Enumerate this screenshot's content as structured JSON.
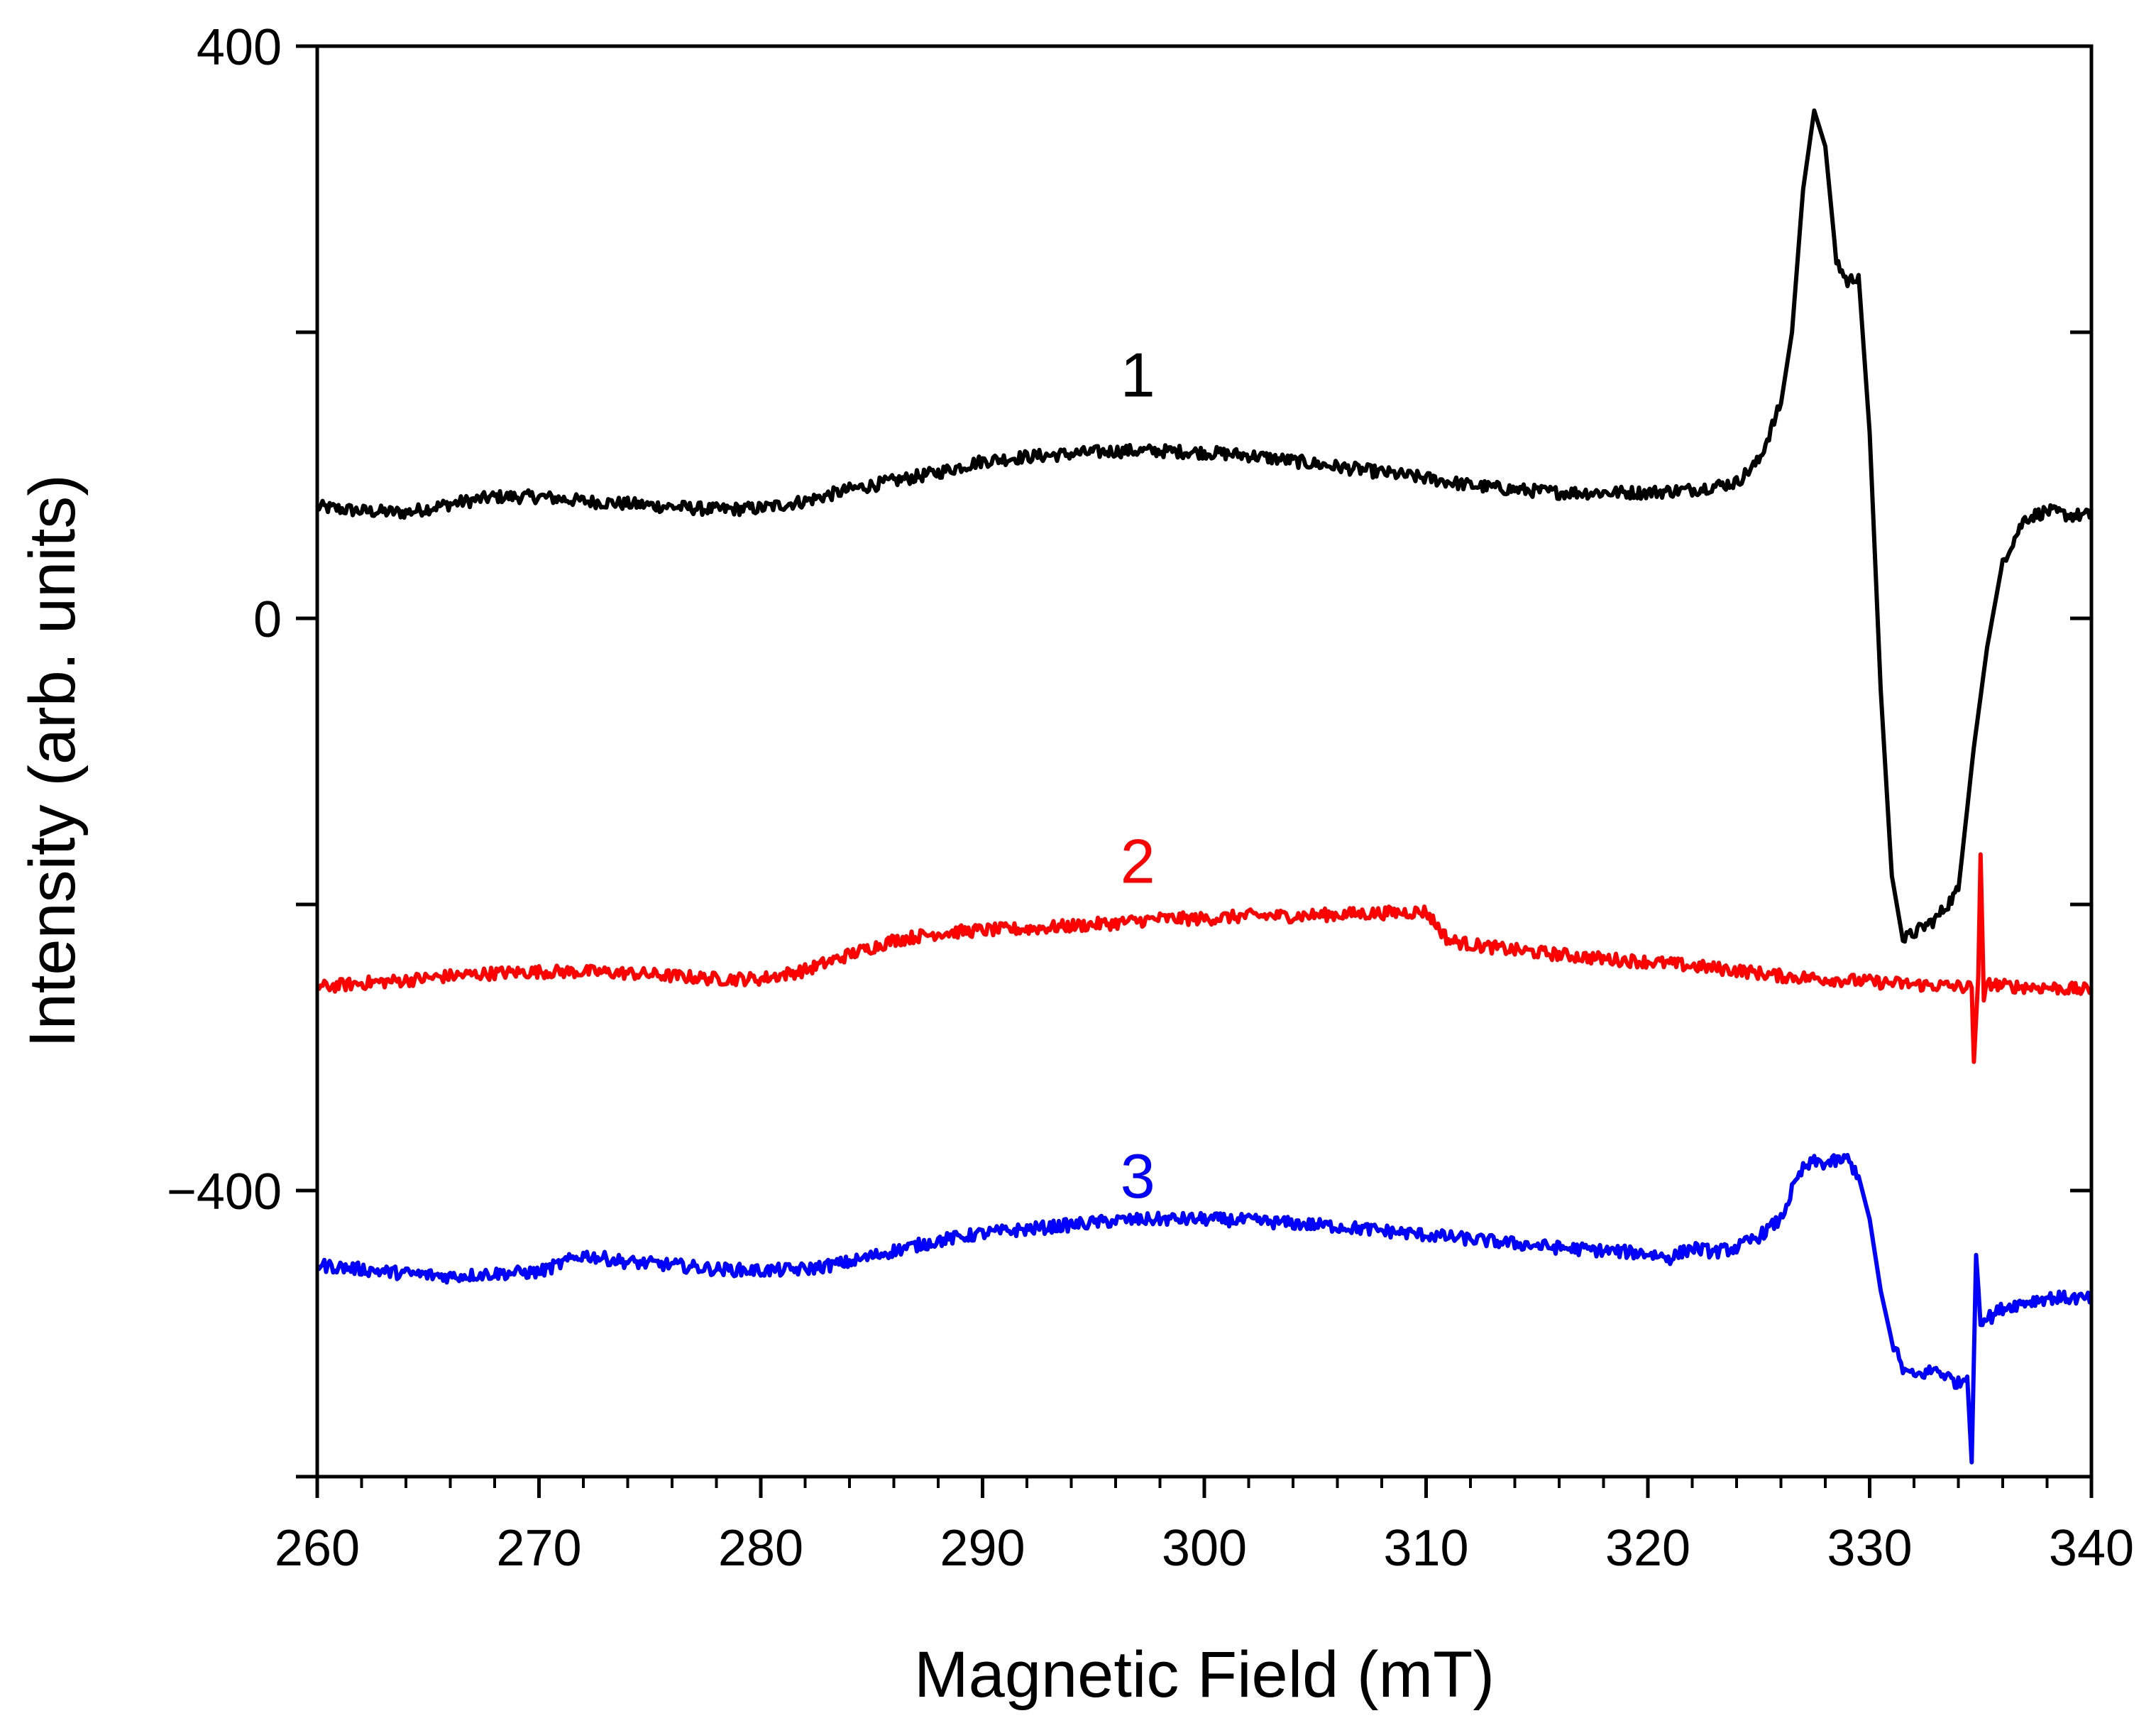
{
  "chart_data": {
    "type": "line",
    "title": "",
    "xlabel": "Magnetic Field (mT)",
    "ylabel": "Intensity (arb. units)",
    "xlim": [
      260,
      340
    ],
    "ylim": [
      -600,
      400
    ],
    "x_ticks": [
      260,
      270,
      280,
      290,
      300,
      310,
      320,
      330,
      340
    ],
    "x_minor_step": 2,
    "y_ticks_labeled": [
      400,
      0,
      -400
    ],
    "y_tick_labels": [
      "400",
      "0",
      "−400"
    ],
    "y_major_step": 200,
    "grid": false,
    "series": [
      {
        "name": "1",
        "label": "1",
        "color": "#000000",
        "label_pos": [
          297,
          170
        ],
        "points": [
          [
            260,
            78
          ],
          [
            262,
            75
          ],
          [
            264,
            74
          ],
          [
            266,
            80
          ],
          [
            268,
            85
          ],
          [
            270,
            85
          ],
          [
            272,
            82
          ],
          [
            274,
            80
          ],
          [
            276,
            78
          ],
          [
            278,
            76
          ],
          [
            280,
            77
          ],
          [
            282,
            82
          ],
          [
            284,
            90
          ],
          [
            286,
            96
          ],
          [
            288,
            102
          ],
          [
            290,
            110
          ],
          [
            292,
            113
          ],
          [
            294,
            115
          ],
          [
            296,
            117
          ],
          [
            298,
            117
          ],
          [
            300,
            116
          ],
          [
            302,
            114
          ],
          [
            304,
            110
          ],
          [
            306,
            106
          ],
          [
            308,
            102
          ],
          [
            310,
            98
          ],
          [
            312,
            93
          ],
          [
            314,
            90
          ],
          [
            316,
            88
          ],
          [
            318,
            88
          ],
          [
            320,
            88
          ],
          [
            322,
            90
          ],
          [
            324,
            95
          ],
          [
            325,
            110
          ],
          [
            326,
            150
          ],
          [
            326.5,
            200
          ],
          [
            327,
            300
          ],
          [
            327.5,
            355
          ],
          [
            328,
            330
          ],
          [
            328.5,
            250
          ],
          [
            329,
            235
          ],
          [
            329.5,
            240
          ],
          [
            330,
            130
          ],
          [
            330.5,
            -50
          ],
          [
            331,
            -180
          ],
          [
            331.5,
            -225
          ],
          [
            332,
            -220
          ],
          [
            333,
            -210
          ],
          [
            334,
            -190
          ],
          [
            334.7,
            -90
          ],
          [
            335.3,
            -20
          ],
          [
            336,
            40
          ],
          [
            337,
            70
          ],
          [
            338,
            75
          ],
          [
            339,
            72
          ],
          [
            340,
            72
          ]
        ]
      },
      {
        "name": "2",
        "label": "2",
        "color": "#ff0000",
        "label_pos": [
          297,
          -170
        ],
        "points": [
          [
            260,
            -258
          ],
          [
            262,
            -255
          ],
          [
            264,
            -253
          ],
          [
            266,
            -250
          ],
          [
            268,
            -248
          ],
          [
            270,
            -247
          ],
          [
            272,
            -247
          ],
          [
            274,
            -248
          ],
          [
            276,
            -250
          ],
          [
            278,
            -252
          ],
          [
            280,
            -252
          ],
          [
            282,
            -246
          ],
          [
            284,
            -235
          ],
          [
            286,
            -225
          ],
          [
            288,
            -220
          ],
          [
            290,
            -218
          ],
          [
            292,
            -217
          ],
          [
            294,
            -215
          ],
          [
            296,
            -213
          ],
          [
            298,
            -210
          ],
          [
            300,
            -210
          ],
          [
            302,
            -208
          ],
          [
            304,
            -208
          ],
          [
            306,
            -207
          ],
          [
            308,
            -206
          ],
          [
            310,
            -205
          ],
          [
            311,
            -225
          ],
          [
            312,
            -228
          ],
          [
            314,
            -232
          ],
          [
            316,
            -235
          ],
          [
            318,
            -238
          ],
          [
            320,
            -240
          ],
          [
            322,
            -243
          ],
          [
            324,
            -246
          ],
          [
            326,
            -250
          ],
          [
            328,
            -252
          ],
          [
            330,
            -254
          ],
          [
            332,
            -256
          ],
          [
            333.5,
            -257
          ],
          [
            334.6,
            -258
          ],
          [
            334.7,
            -310
          ],
          [
            334.9,
            -250
          ],
          [
            335,
            -165
          ],
          [
            335.15,
            -265
          ],
          [
            335.4,
            -255
          ],
          [
            336,
            -257
          ],
          [
            338,
            -258
          ],
          [
            340,
            -260
          ]
        ]
      },
      {
        "name": "3",
        "label": "3",
        "color": "#0000ff",
        "label_pos": [
          297,
          -390
        ],
        "points": [
          [
            260,
            -452
          ],
          [
            262,
            -455
          ],
          [
            264,
            -458
          ],
          [
            266,
            -460
          ],
          [
            268,
            -458
          ],
          [
            270,
            -457
          ],
          [
            272,
            -445
          ],
          [
            274,
            -450
          ],
          [
            276,
            -452
          ],
          [
            278,
            -455
          ],
          [
            280,
            -456
          ],
          [
            282,
            -455
          ],
          [
            284,
            -450
          ],
          [
            286,
            -442
          ],
          [
            288,
            -435
          ],
          [
            290,
            -430
          ],
          [
            292,
            -427
          ],
          [
            294,
            -424
          ],
          [
            296,
            -421
          ],
          [
            298,
            -420
          ],
          [
            300,
            -420
          ],
          [
            302,
            -421
          ],
          [
            304,
            -423
          ],
          [
            306,
            -425
          ],
          [
            308,
            -428
          ],
          [
            310,
            -431
          ],
          [
            312,
            -434
          ],
          [
            314,
            -437
          ],
          [
            316,
            -440
          ],
          [
            318,
            -442
          ],
          [
            320,
            -444
          ],
          [
            321,
            -447
          ],
          [
            322,
            -440
          ],
          [
            323,
            -443
          ],
          [
            324,
            -440
          ],
          [
            325,
            -432
          ],
          [
            326,
            -420
          ],
          [
            326.5,
            -400
          ],
          [
            327,
            -385
          ],
          [
            327.5,
            -380
          ],
          [
            328,
            -381
          ],
          [
            329,
            -378
          ],
          [
            329.5,
            -390
          ],
          [
            330,
            -420
          ],
          [
            330.5,
            -470
          ],
          [
            331,
            -505
          ],
          [
            331.5,
            -525
          ],
          [
            332,
            -530
          ],
          [
            333,
            -525
          ],
          [
            334,
            -535
          ],
          [
            334.4,
            -530
          ],
          [
            334.6,
            -590
          ],
          [
            334.8,
            -445
          ],
          [
            335,
            -490
          ],
          [
            335.5,
            -488
          ],
          [
            336,
            -482
          ],
          [
            337,
            -478
          ],
          [
            338,
            -475
          ],
          [
            339,
            -475
          ],
          [
            340,
            -476
          ]
        ]
      }
    ]
  }
}
